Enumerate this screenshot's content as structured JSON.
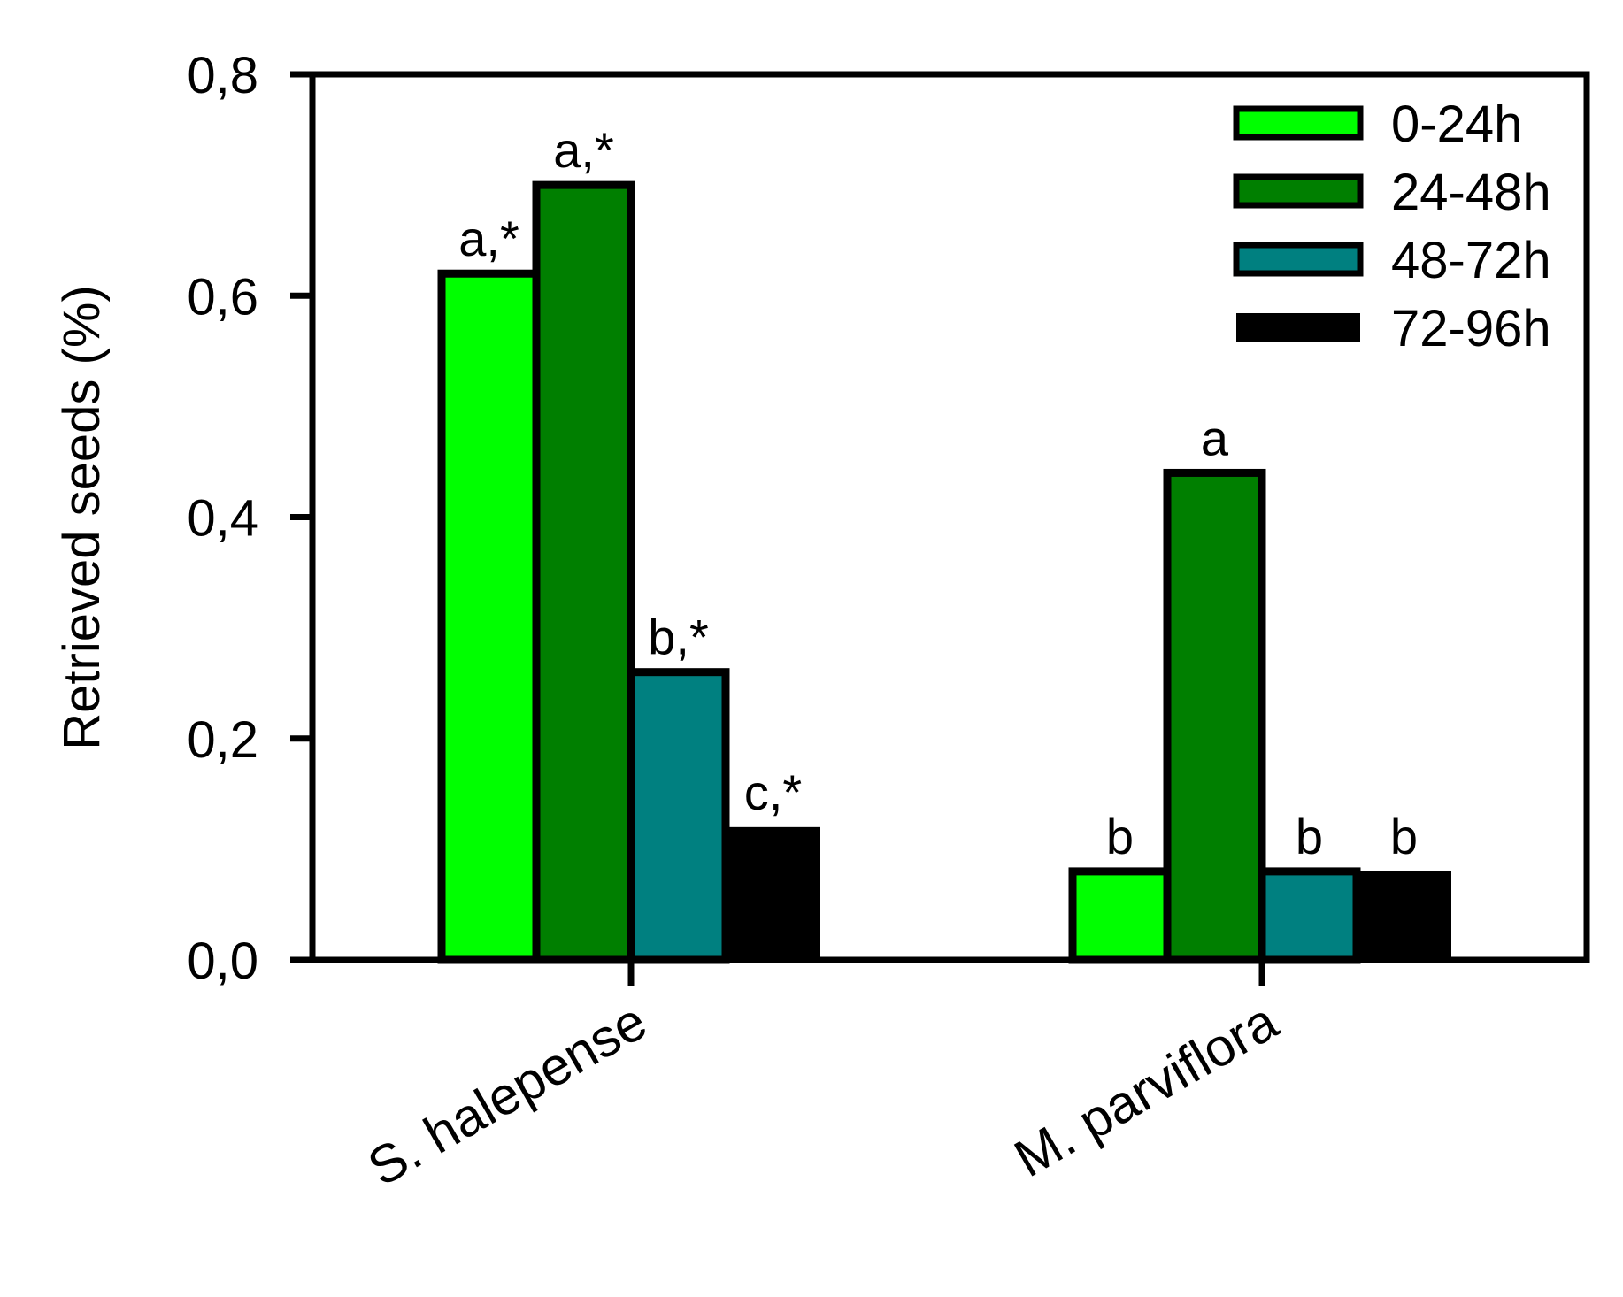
{
  "chart_data": {
    "type": "bar",
    "title": "",
    "ylabel": "Retrieved seeds (%)",
    "xlabel": "",
    "ylim": [
      0,
      0.8
    ],
    "yticks": [
      0.0,
      0.2,
      0.4,
      0.6,
      0.8
    ],
    "ytick_labels": [
      "0,0",
      "0,2",
      "0,4",
      "0,6",
      "0,8"
    ],
    "categories": [
      "S. halepense",
      "M. parviflora"
    ],
    "legend_position": "top-right",
    "grid": false,
    "series": [
      {
        "name": "0-24h",
        "color": "#00ff00",
        "values": [
          0.62,
          0.08
        ],
        "labels": [
          "a,*",
          "b"
        ]
      },
      {
        "name": "24-48h",
        "color": "#007f00",
        "values": [
          0.7,
          0.44
        ],
        "labels": [
          "a,*",
          "a"
        ]
      },
      {
        "name": "48-72h",
        "color": "#008080",
        "values": [
          0.26,
          0.08
        ],
        "labels": [
          "b,*",
          "b"
        ]
      },
      {
        "name": "72-96h",
        "color": "#000000",
        "values": [
          0.12,
          0.08
        ],
        "labels": [
          "c,*",
          "b"
        ]
      }
    ]
  }
}
